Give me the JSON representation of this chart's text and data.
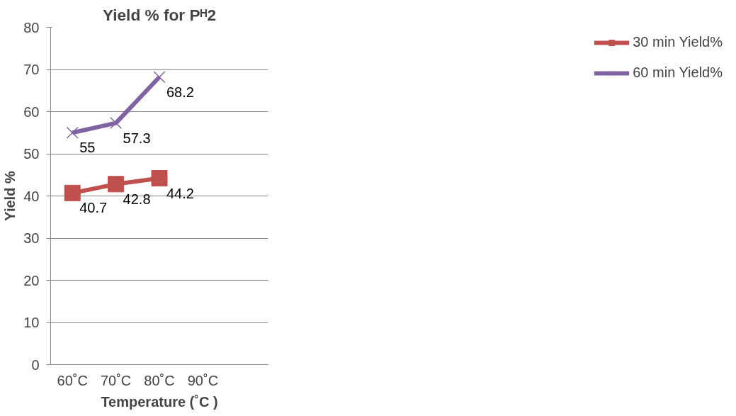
{
  "chart_data": {
    "type": "line",
    "title": "Yield % for Pᴴ2",
    "xlabel": "Temperature (˚C )",
    "ylabel": "Yield %",
    "categories": [
      "60˚C",
      "70˚C",
      "80˚C",
      "90˚C",
      null
    ],
    "series": [
      {
        "name": "30 min Yield%",
        "color": "#c0504d",
        "marker": "square",
        "values": [
          40.7,
          42.8,
          44.2,
          null,
          null
        ]
      },
      {
        "name": "60 min Yield%",
        "color": "#8064a2",
        "marker": "cross",
        "values": [
          55,
          57.3,
          68.2,
          null,
          null
        ]
      }
    ],
    "ylim": [
      0,
      80
    ],
    "yticks": [
      0,
      10,
      20,
      30,
      40,
      50,
      60,
      70,
      80
    ],
    "grid": "y",
    "legend": "right",
    "data_labels": true
  }
}
